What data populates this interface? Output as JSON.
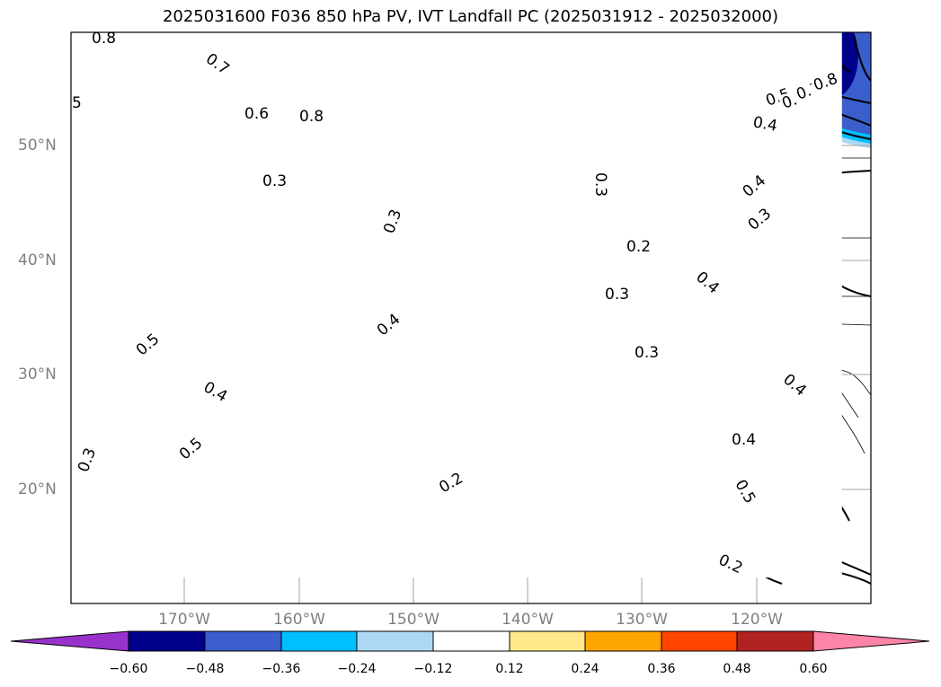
{
  "title": "2025031600 F036 850 hPa PV, IVT Landfall PC (2025031912 - 2025032000)",
  "lat_labels": [
    "50°N",
    "40°N",
    "30°N",
    "20°N"
  ],
  "lon_labels": [
    "170°W",
    "160°W",
    "150°W",
    "140°W",
    "130°W",
    "120°W"
  ],
  "colorbar": {
    "tick_labels": [
      "−0.60",
      "−0.48",
      "−0.36",
      "−0.24",
      "−0.12",
      "0.12",
      "0.24",
      "0.36",
      "0.48",
      "0.60"
    ],
    "colors": [
      "#9932cc",
      "#00008b",
      "#3a5fcd",
      "#00bfff",
      "#add8f5",
      "#ffffff",
      "#ffe98a",
      "#ffa500",
      "#ff4500",
      "#b22222",
      "#ff85a8"
    ]
  },
  "contour_labels": [
    "0.8",
    "0.7",
    "0.6",
    "0.8",
    "5",
    "0.3",
    "0.3",
    "0.3",
    "0.2",
    "0.4",
    "0.5",
    "0.4",
    "0.5",
    "0.3",
    "0.3",
    "0.3",
    "0.2",
    "0.4",
    "0.4",
    "0.5",
    "0.2",
    "0.4",
    "0.3",
    "0.4",
    "0.4",
    "0.5",
    "0.6",
    "0.7",
    "0.8"
  ]
}
